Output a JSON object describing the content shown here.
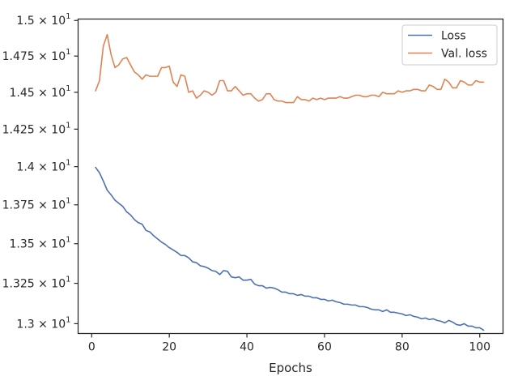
{
  "chart_data": {
    "type": "line",
    "title": "",
    "xlabel": "Epochs",
    "ylabel": "",
    "xlim": [
      -3.5,
      106
    ],
    "ylim": [
      12.94,
      15.01
    ],
    "y_scale": "log",
    "grid": false,
    "legend_position": "top-right",
    "x_ticks": [
      0,
      20,
      40,
      60,
      80,
      100
    ],
    "x_tick_labels": [
      "0",
      "20",
      "40",
      "60",
      "80",
      "100"
    ],
    "y_ticks": [
      13.0,
      13.25,
      13.5,
      13.75,
      14.0,
      14.25,
      14.5,
      14.75,
      15.0
    ],
    "y_tick_labels": [
      {
        "mantissa": "1.3 × 10",
        "exponent": "1"
      },
      {
        "mantissa": "1.325 × 10",
        "exponent": "1"
      },
      {
        "mantissa": "1.35 × 10",
        "exponent": "1"
      },
      {
        "mantissa": "1.375 × 10",
        "exponent": "1"
      },
      {
        "mantissa": "1.4 × 10",
        "exponent": "1"
      },
      {
        "mantissa": "1.425 × 10",
        "exponent": "1"
      },
      {
        "mantissa": "1.45 × 10",
        "exponent": "1"
      },
      {
        "mantissa": "1.475 × 10",
        "exponent": "1"
      },
      {
        "mantissa": "1.5 × 10",
        "exponent": "1"
      }
    ],
    "x": [
      1,
      2,
      3,
      4,
      5,
      6,
      7,
      8,
      9,
      10,
      11,
      12,
      13,
      14,
      15,
      16,
      17,
      18,
      19,
      20,
      21,
      22,
      23,
      24,
      25,
      26,
      27,
      28,
      29,
      30,
      31,
      32,
      33,
      34,
      35,
      36,
      37,
      38,
      39,
      40,
      41,
      42,
      43,
      44,
      45,
      46,
      47,
      48,
      49,
      50,
      51,
      52,
      53,
      54,
      55,
      56,
      57,
      58,
      59,
      60,
      61,
      62,
      63,
      64,
      65,
      66,
      67,
      68,
      69,
      70,
      71,
      72,
      73,
      74,
      75,
      76,
      77,
      78,
      79,
      80,
      81,
      82,
      83,
      84,
      85,
      86,
      87,
      88,
      89,
      90,
      91,
      92,
      93,
      94,
      95,
      96,
      97,
      98,
      99,
      100,
      101
    ],
    "series": [
      {
        "name": "Loss",
        "color": "#4c72b0",
        "values": [
          13.995,
          13.96,
          13.905,
          13.845,
          13.815,
          13.78,
          13.76,
          13.74,
          13.705,
          13.685,
          13.655,
          13.635,
          13.625,
          13.585,
          13.575,
          13.55,
          13.53,
          13.51,
          13.495,
          13.475,
          13.46,
          13.445,
          13.425,
          13.425,
          13.41,
          13.385,
          13.38,
          13.36,
          13.355,
          13.345,
          13.33,
          13.325,
          13.305,
          13.33,
          13.325,
          13.29,
          13.285,
          13.29,
          13.27,
          13.27,
          13.275,
          13.245,
          13.235,
          13.235,
          13.22,
          13.225,
          13.22,
          13.21,
          13.195,
          13.195,
          13.185,
          13.185,
          13.175,
          13.18,
          13.17,
          13.17,
          13.16,
          13.16,
          13.15,
          13.15,
          13.14,
          13.145,
          13.135,
          13.13,
          13.12,
          13.12,
          13.115,
          13.115,
          13.105,
          13.105,
          13.1,
          13.09,
          13.085,
          13.085,
          13.075,
          13.085,
          13.07,
          13.07,
          13.065,
          13.06,
          13.05,
          13.055,
          13.045,
          13.04,
          13.03,
          13.035,
          13.025,
          13.03,
          13.02,
          13.015,
          13.005,
          13.02,
          13.01,
          12.995,
          12.99,
          13.0,
          12.985,
          12.985,
          12.975,
          12.975,
          12.96
        ]
      },
      {
        "name": "Val. loss",
        "color": "#dd8452",
        "values": [
          14.51,
          14.58,
          14.82,
          14.9,
          14.76,
          14.67,
          14.69,
          14.73,
          14.74,
          14.69,
          14.64,
          14.62,
          14.59,
          14.62,
          14.61,
          14.61,
          14.61,
          14.67,
          14.67,
          14.68,
          14.57,
          14.54,
          14.62,
          14.61,
          14.5,
          14.51,
          14.46,
          14.48,
          14.51,
          14.5,
          14.48,
          14.5,
          14.58,
          14.58,
          14.51,
          14.51,
          14.54,
          14.51,
          14.48,
          14.49,
          14.49,
          14.46,
          14.44,
          14.45,
          14.49,
          14.49,
          14.45,
          14.44,
          14.44,
          14.43,
          14.43,
          14.43,
          14.47,
          14.45,
          14.45,
          14.44,
          14.46,
          14.45,
          14.46,
          14.45,
          14.46,
          14.46,
          14.46,
          14.47,
          14.46,
          14.46,
          14.47,
          14.48,
          14.48,
          14.47,
          14.47,
          14.48,
          14.48,
          14.47,
          14.5,
          14.49,
          14.49,
          14.49,
          14.51,
          14.5,
          14.51,
          14.51,
          14.52,
          14.52,
          14.51,
          14.51,
          14.55,
          14.54,
          14.52,
          14.52,
          14.59,
          14.57,
          14.53,
          14.53,
          14.58,
          14.57,
          14.55,
          14.55,
          14.58,
          14.57,
          14.57
        ]
      }
    ]
  }
}
